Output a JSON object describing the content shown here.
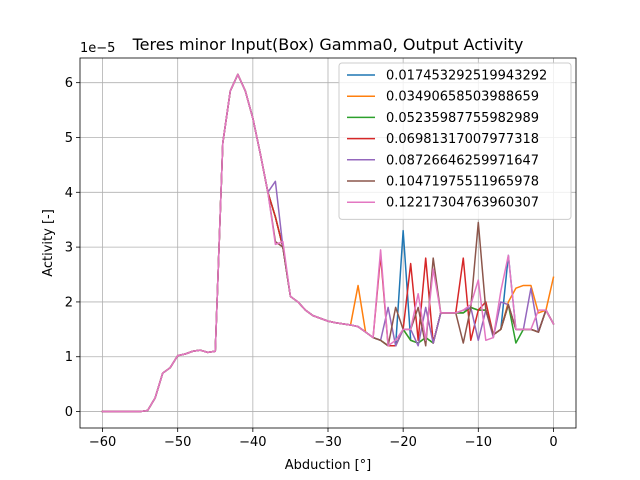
{
  "chart_data": {
    "type": "line",
    "title": "Teres minor Input(Box) Gamma0, Output Activity",
    "xlabel": "Abduction [°]",
    "ylabel": "Activity [-]",
    "y_offset_label": "1e−5",
    "y_scale": 1e-05,
    "xlim": [
      -63,
      3
    ],
    "ylim": [
      -0.3,
      6.45
    ],
    "xticks": [
      -60,
      -50,
      -40,
      -30,
      -20,
      -10,
      0
    ],
    "yticks": [
      0,
      1,
      2,
      3,
      4,
      5,
      6
    ],
    "grid": true,
    "legend_position": "upper right",
    "x": [
      -60,
      -59,
      -58,
      -57,
      -56,
      -55,
      -54,
      -53,
      -52,
      -51,
      -50,
      -49,
      -48,
      -47,
      -46,
      -45,
      -44,
      -43,
      -42,
      -41,
      -40,
      -39,
      -38,
      -37,
      -36,
      -35,
      -34,
      -33,
      -32,
      -31,
      -30,
      -29,
      -28,
      -27,
      -26,
      -25,
      -24,
      -23,
      -22,
      -21,
      -20,
      -19,
      -18,
      -17,
      -16,
      -15,
      -14,
      -13,
      -12,
      -11,
      -10,
      -9,
      -8,
      -7,
      -6,
      -5,
      -4,
      -3,
      -2,
      -1,
      0
    ],
    "series": [
      {
        "name": "0.017453292519943292",
        "color": "#1f77b4",
        "values": [
          0,
          0,
          0,
          0,
          0,
          0,
          0.02,
          0.25,
          0.7,
          0.8,
          1.02,
          1.05,
          1.1,
          1.12,
          1.08,
          1.1,
          4.9,
          5.85,
          6.15,
          5.85,
          5.35,
          4.7,
          4.0,
          3.55,
          3.0,
          2.1,
          2.0,
          1.85,
          1.75,
          1.7,
          1.65,
          1.62,
          1.6,
          1.58,
          1.55,
          1.45,
          1.35,
          1.3,
          1.2,
          1.2,
          3.3,
          1.3,
          1.25,
          1.35,
          1.25,
          1.8,
          1.8,
          1.8,
          1.8,
          1.9,
          1.85,
          1.85,
          1.4,
          1.5,
          2.85,
          1.5,
          1.5,
          1.5,
          1.45,
          1.85,
          1.6
        ]
      },
      {
        "name": "0.03490658503988659",
        "color": "#ff7f0e",
        "values": [
          0,
          0,
          0,
          0,
          0,
          0,
          0.02,
          0.25,
          0.7,
          0.8,
          1.02,
          1.05,
          1.1,
          1.12,
          1.08,
          1.1,
          4.9,
          5.85,
          6.15,
          5.85,
          5.35,
          4.7,
          4.0,
          3.55,
          3.0,
          2.1,
          2.0,
          1.85,
          1.75,
          1.7,
          1.65,
          1.62,
          1.6,
          1.58,
          2.3,
          1.45,
          1.35,
          1.3,
          1.2,
          1.2,
          1.5,
          1.3,
          1.25,
          1.35,
          1.25,
          1.8,
          1.8,
          1.8,
          1.8,
          1.9,
          1.85,
          1.85,
          1.4,
          1.5,
          2.0,
          2.25,
          2.3,
          2.3,
          1.8,
          1.85,
          2.45
        ]
      },
      {
        "name": "0.05235987755982989",
        "color": "#2ca02c",
        "values": [
          0,
          0,
          0,
          0,
          0,
          0,
          0.02,
          0.25,
          0.7,
          0.8,
          1.02,
          1.05,
          1.1,
          1.12,
          1.08,
          1.1,
          4.9,
          5.85,
          6.15,
          5.85,
          5.35,
          4.7,
          4.0,
          3.55,
          3.0,
          2.1,
          2.0,
          1.85,
          1.75,
          1.7,
          1.65,
          1.62,
          1.6,
          1.58,
          1.55,
          1.45,
          1.35,
          1.3,
          1.2,
          1.2,
          1.5,
          1.3,
          1.25,
          1.35,
          1.25,
          1.8,
          1.8,
          1.8,
          1.8,
          1.9,
          1.85,
          1.85,
          1.4,
          1.5,
          1.95,
          1.25,
          1.5,
          1.5,
          1.45,
          1.85,
          1.6
        ]
      },
      {
        "name": "0.06981317007977318",
        "color": "#d62728",
        "values": [
          0,
          0,
          0,
          0,
          0,
          0,
          0.02,
          0.25,
          0.7,
          0.8,
          1.02,
          1.05,
          1.1,
          1.12,
          1.08,
          1.1,
          4.9,
          5.85,
          6.15,
          5.85,
          5.35,
          4.7,
          4.0,
          3.55,
          3.0,
          2.1,
          2.0,
          1.85,
          1.75,
          1.7,
          1.65,
          1.62,
          1.6,
          1.58,
          1.55,
          1.45,
          1.35,
          2.85,
          1.2,
          1.2,
          1.5,
          2.7,
          1.3,
          2.8,
          1.25,
          1.8,
          1.8,
          1.8,
          2.8,
          1.3,
          1.85,
          2.0,
          1.4,
          1.5,
          1.95,
          1.5,
          1.5,
          1.5,
          1.45,
          1.85,
          1.6
        ]
      },
      {
        "name": "0.08726646259971647",
        "color": "#9467bd",
        "values": [
          0,
          0,
          0,
          0,
          0,
          0,
          0.02,
          0.25,
          0.7,
          0.8,
          1.02,
          1.05,
          1.1,
          1.12,
          1.08,
          1.1,
          4.9,
          5.85,
          6.15,
          5.85,
          5.35,
          4.7,
          4.0,
          4.2,
          3.0,
          2.1,
          2.0,
          1.85,
          1.75,
          1.7,
          1.65,
          1.62,
          1.6,
          1.58,
          1.55,
          1.45,
          1.35,
          1.3,
          1.9,
          1.2,
          1.5,
          1.5,
          1.2,
          1.9,
          1.25,
          1.8,
          1.8,
          1.8,
          1.85,
          1.9,
          1.3,
          1.85,
          1.35,
          2.0,
          1.95,
          1.5,
          1.5,
          2.25,
          1.45,
          1.85,
          1.6
        ]
      },
      {
        "name": "0.10471975511965978",
        "color": "#8c564b",
        "values": [
          0,
          0,
          0,
          0,
          0,
          0,
          0.02,
          0.25,
          0.7,
          0.8,
          1.02,
          1.05,
          1.1,
          1.12,
          1.08,
          1.1,
          4.9,
          5.85,
          6.15,
          5.85,
          5.35,
          4.7,
          4.0,
          3.1,
          3.0,
          2.1,
          2.0,
          1.85,
          1.75,
          1.7,
          1.65,
          1.62,
          1.6,
          1.58,
          1.55,
          1.45,
          1.35,
          1.3,
          1.2,
          1.9,
          1.5,
          1.5,
          1.9,
          1.2,
          2.8,
          1.8,
          1.8,
          1.8,
          1.25,
          1.9,
          3.45,
          1.85,
          1.4,
          1.5,
          1.95,
          1.5,
          1.5,
          1.5,
          1.45,
          1.85,
          1.6
        ]
      },
      {
        "name": "0.12217304763960307",
        "color": "#e377c2",
        "values": [
          0,
          0,
          0,
          0,
          0,
          0,
          0.02,
          0.25,
          0.7,
          0.8,
          1.02,
          1.05,
          1.1,
          1.12,
          1.08,
          1.1,
          4.9,
          5.85,
          6.15,
          5.85,
          5.35,
          4.7,
          4.0,
          3.05,
          3.1,
          2.1,
          2.0,
          1.85,
          1.75,
          1.7,
          1.65,
          1.62,
          1.6,
          1.58,
          1.55,
          1.45,
          1.35,
          2.95,
          1.2,
          1.3,
          1.5,
          1.5,
          2.15,
          1.3,
          2.6,
          1.8,
          1.8,
          1.8,
          1.85,
          1.95,
          2.4,
          1.3,
          1.35,
          2.2,
          2.85,
          1.5,
          1.5,
          1.5,
          1.85,
          1.85,
          1.6
        ]
      }
    ]
  }
}
